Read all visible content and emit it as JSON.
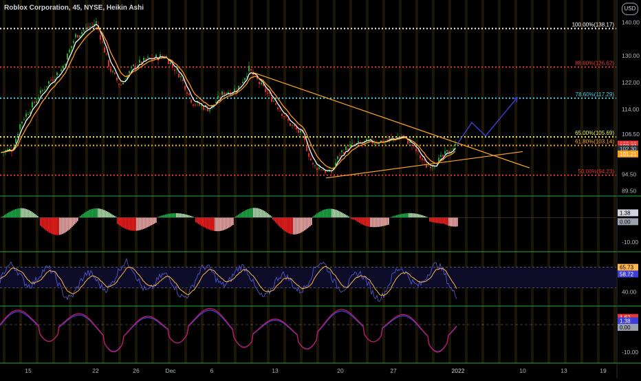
{
  "header": {
    "title": "Roblox Corporation, 45, NYSE, Heikin Ashi",
    "currency_badge": "USD"
  },
  "colors": {
    "background": "#000000",
    "up": "#22ab2c",
    "down": "#e52a2a",
    "fib_white": "#ffffff",
    "fib_red": "#e53935",
    "fib_cyan": "#4dd0e1",
    "fib_orange": "#ffa726",
    "fib_yellow": "#f5f55a",
    "ema_fast": "#ffffff",
    "ema_slow": "#ff9f1c",
    "projection": "#3f3fd8",
    "rsi_line": "#5656c8",
    "rsi_signal": "#ffb74d",
    "osc_line": "#c2185b",
    "osc_signal": "#3f3fd8",
    "pane_separator": "#1fae36"
  },
  "chart_data": [
    {
      "type": "candlestick",
      "name": "price",
      "ylim": [
        88,
        143
      ],
      "y_ticks": [
        "140.00",
        "130.00",
        "122.00",
        "114.00",
        "106.50",
        "94.50",
        "89.50"
      ],
      "y_tick_values": [
        140,
        130,
        122,
        114,
        106.5,
        94.5,
        89.5
      ],
      "x_tick_labels": [
        "15",
        "22",
        "26",
        "Dec",
        "6",
        "13",
        "20",
        "27",
        "2022",
        "10",
        "13",
        "19"
      ],
      "fib_levels": [
        {
          "label": "100.00%(138.17)",
          "value": 138.17,
          "color": "#ffffff"
        },
        {
          "label": "88.60%(126.62)",
          "value": 126.62,
          "color": "#e53935"
        },
        {
          "label": "78.60%(117.29)",
          "value": 117.29,
          "color": "#4dd0e1"
        },
        {
          "label": "65.00%(105.69)",
          "value": 105.69,
          "color": "#f5f55a"
        },
        {
          "label": "61.80%(103.14)",
          "value": 103.14,
          "color": "#ffa726"
        },
        {
          "label": "50.00%(94.23)",
          "value": 94.23,
          "color": "#e53935"
        }
      ],
      "price_labels": [
        {
          "text": "102.93",
          "value": 102.93,
          "bg": "#e53935"
        },
        {
          "text": "102.77",
          "value": 102.77,
          "bg": "#e53935"
        },
        {
          "text": "102.30",
          "value": 102.3,
          "bg": "#2a2e39"
        },
        {
          "text": "101.21",
          "value": 101.21,
          "bg": "#ff9f1c"
        }
      ],
      "trendlines": [
        {
          "from": [
            368,
            125
          ],
          "to": [
            770,
            96.4
          ]
        },
        {
          "from": [
            474,
            93.4
          ],
          "to": [
            760,
            101.3
          ]
        }
      ],
      "projection": [
        [
          664,
          103.3
        ],
        [
          686,
          110
        ],
        [
          706,
          106
        ],
        [
          752,
          117.5
        ]
      ]
    },
    {
      "type": "histogram",
      "name": "momentum",
      "ylim": [
        -14,
        8
      ],
      "y_ticks": [
        "-10.00"
      ],
      "y_tick_values": [
        -10
      ],
      "labels": [
        {
          "text": "1.38",
          "value": 1.38,
          "bg": "#d1d4dc",
          "fg": "#000"
        },
        {
          "text": "0.00",
          "value": 0,
          "bg": "#9aa0ad",
          "fg": "#000"
        }
      ]
    },
    {
      "type": "line",
      "name": "rsi",
      "ylim": [
        25,
        80
      ],
      "y_ticks": [
        "40.00"
      ],
      "y_tick_values": [
        40
      ],
      "bands": [
        66,
        44
      ],
      "labels": [
        {
          "text": "65.73",
          "value": 65.73,
          "bg": "#ffb74d",
          "fg": "#000"
        },
        {
          "text": "58.72",
          "value": 58.72,
          "bg": "#3f3fd8",
          "fg": "#fff"
        }
      ]
    },
    {
      "type": "line",
      "name": "oscillator",
      "ylim": [
        -14,
        6
      ],
      "y_ticks": [
        "-10.00"
      ],
      "y_tick_values": [
        -10
      ],
      "labels": [
        {
          "text": "1.62",
          "value": 1.62,
          "bg": "#e53935",
          "fg": "#fff"
        },
        {
          "text": "1.38",
          "value": 1.38,
          "bg": "#3f3fd8",
          "fg": "#fff"
        },
        {
          "text": "0.00",
          "value": 0,
          "bg": "#9aa0ad",
          "fg": "#000"
        }
      ]
    }
  ]
}
